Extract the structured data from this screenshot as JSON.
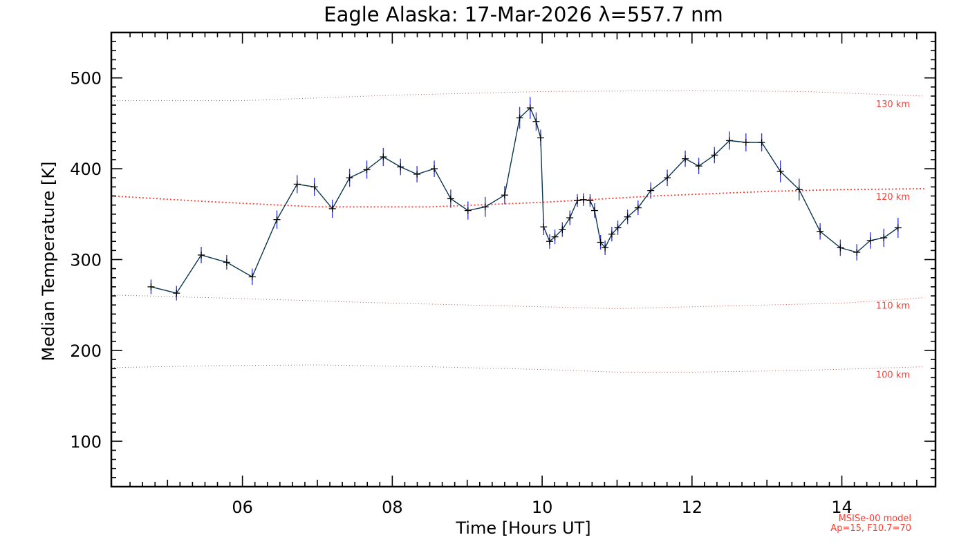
{
  "chart_data": {
    "type": "line",
    "title": "Eagle Alaska: 17-Mar-2026 λ=557.7 nm",
    "xlabel": "Time [Hours UT]",
    "ylabel": "Median Temperature [K]",
    "xlim": [
      4.25,
      15.25
    ],
    "ylim": [
      50,
      550
    ],
    "xticks": [
      {
        "v": 6,
        "label": "06"
      },
      {
        "v": 8,
        "label": "08"
      },
      {
        "v": 10,
        "label": "10"
      },
      {
        "v": 12,
        "label": "12"
      },
      {
        "v": 14,
        "label": "14"
      }
    ],
    "yticks": [
      {
        "v": 100,
        "label": "100"
      },
      {
        "v": 200,
        "label": "200"
      },
      {
        "v": 300,
        "label": "300"
      },
      {
        "v": 400,
        "label": "400"
      },
      {
        "v": 500,
        "label": "500"
      }
    ],
    "series": [
      {
        "name": "Median Temperature",
        "color": "#0b3550",
        "error_color": "#3a3ad6",
        "x": [
          4.78,
          5.12,
          5.45,
          5.79,
          6.13,
          6.46,
          6.73,
          6.96,
          7.2,
          7.43,
          7.66,
          7.88,
          8.11,
          8.33,
          8.56,
          8.78,
          9.01,
          9.24,
          9.5,
          9.7,
          9.84,
          9.92,
          9.98,
          10.02,
          10.1,
          10.17,
          10.27,
          10.37,
          10.47,
          10.55,
          10.64,
          10.7,
          10.78,
          10.84,
          10.93,
          11.01,
          11.14,
          11.28,
          11.45,
          11.67,
          11.91,
          12.09,
          12.3,
          12.5,
          12.72,
          12.93,
          13.18,
          13.43,
          13.71,
          13.98,
          14.2,
          14.38,
          14.56,
          14.75
        ],
        "y": [
          270,
          263,
          305,
          297,
          281,
          344,
          383,
          380,
          356,
          390,
          399,
          413,
          402,
          394,
          400,
          367,
          354,
          358,
          371,
          456,
          467,
          452,
          434,
          336,
          320,
          325,
          333,
          346,
          365,
          366,
          365,
          354,
          319,
          313,
          328,
          335,
          347,
          357,
          376,
          390,
          411,
          403,
          415,
          431,
          429,
          429,
          397,
          377,
          331,
          313,
          308,
          321,
          324,
          335
        ],
        "error": [
          8,
          8,
          9,
          8,
          9,
          10,
          10,
          10,
          10,
          10,
          10,
          10,
          9,
          9,
          9,
          10,
          10,
          11,
          10,
          12,
          12,
          10,
          9,
          9,
          8,
          8,
          8,
          8,
          7,
          7,
          7,
          8,
          8,
          8,
          8,
          8,
          8,
          8,
          9,
          9,
          9,
          9,
          9,
          10,
          10,
          10,
          12,
          12,
          9,
          9,
          9,
          9,
          10,
          11
        ]
      }
    ],
    "model_lines": [
      {
        "label": "130 km",
        "color": "#ff3b30",
        "x": [
          4.25,
          6.0,
          8.0,
          10.0,
          12.0,
          13.5,
          15.1
        ],
        "y": [
          475,
          475,
          481,
          485,
          486,
          485,
          480
        ]
      },
      {
        "label": "120 km",
        "color": "#ff3b30",
        "x": [
          4.25,
          5.5,
          7.0,
          8.5,
          10.0,
          11.5,
          13.0,
          14.0,
          15.1
        ],
        "y": [
          370,
          364,
          358,
          358,
          363,
          370,
          375,
          377,
          378
        ]
      },
      {
        "label": "110 km",
        "color": "#ff3b30",
        "x": [
          4.25,
          6.0,
          8.0,
          10.0,
          11.0,
          12.0,
          13.0,
          14.0,
          15.1
        ],
        "y": [
          261,
          257,
          252,
          248,
          246,
          248,
          250,
          252,
          258
        ]
      },
      {
        "label": "100 km",
        "color": "#ff3b30",
        "x": [
          4.25,
          5.5,
          7.0,
          8.5,
          10.0,
          11.0,
          12.0,
          13.5,
          15.1
        ],
        "y": [
          181,
          183,
          184,
          182,
          179,
          176,
          176,
          178,
          182
        ]
      }
    ],
    "annotations": [
      "MSISe-00 model",
      "Ap=15, F10.7=70"
    ],
    "annotation_color": "#ff3b30",
    "axis_color": "#000000",
    "grid": false
  }
}
